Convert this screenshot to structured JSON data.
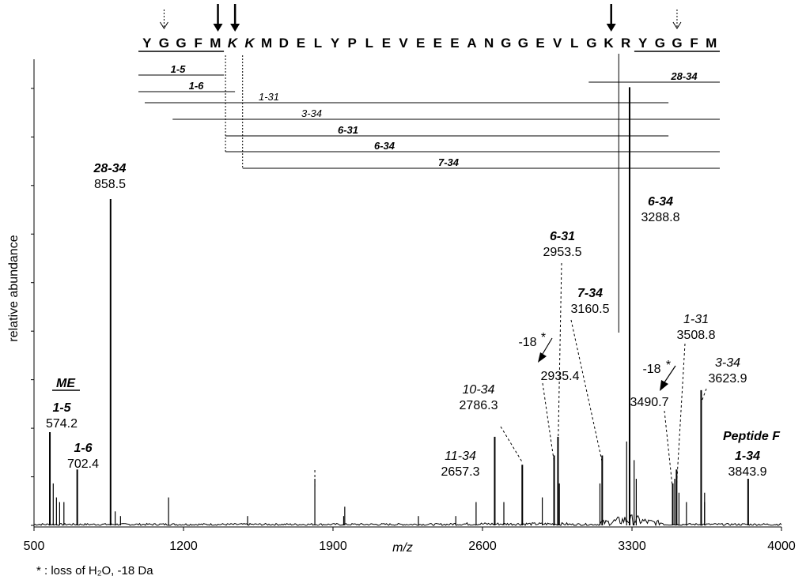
{
  "chart_data": {
    "type": "spectrum",
    "xlabel": "m/z",
    "ylabel": "relative abundance",
    "xlim": [
      500,
      4000
    ],
    "xticks": [
      "500",
      "1200",
      "1900",
      "2600",
      "3300",
      "4000"
    ],
    "sequence": [
      "Y",
      "G",
      "G",
      "F",
      "M",
      "K",
      "K",
      "M",
      "D",
      "E",
      "L",
      "Y",
      "P",
      "L",
      "E",
      "V",
      "E",
      "E",
      "E",
      "A",
      "N",
      "G",
      "G",
      "E",
      "V",
      "L",
      "G",
      "K",
      "R",
      "Y",
      "G",
      "G",
      "F",
      "M"
    ],
    "cleavage_arrows": [
      {
        "after": 5,
        "style": "bold"
      },
      {
        "after": 6,
        "style": "bold"
      },
      {
        "after": 28,
        "style": "bold"
      },
      {
        "after": 1,
        "style": "dotted"
      },
      {
        "after": 31,
        "style": "dotted"
      }
    ],
    "fragments": [
      {
        "label": "1-5",
        "start": 1,
        "end": 5,
        "style": "bold"
      },
      {
        "label": "1-6",
        "start": 1,
        "end": 6,
        "style": "bold"
      },
      {
        "label": "28-34",
        "start": 28,
        "end": 34,
        "style": "bold"
      },
      {
        "label": "1-31",
        "start": 1,
        "end": 31,
        "style": "italic"
      },
      {
        "label": "3-34",
        "start": 3,
        "end": 34,
        "style": "italic"
      },
      {
        "label": "6-31",
        "start": 6,
        "end": 31,
        "style": "bold"
      },
      {
        "label": "6-34",
        "start": 6,
        "end": 34,
        "style": "bold"
      },
      {
        "label": "7-34",
        "start": 7,
        "end": 34,
        "style": "bold"
      }
    ],
    "peaks": [
      {
        "mz": 574.2,
        "intensity": 0.2
      },
      {
        "mz": 702.4,
        "intensity": 0.12
      },
      {
        "mz": 858.5,
        "intensity": 0.7
      },
      {
        "mz": 2657.3,
        "intensity": 0.19
      },
      {
        "mz": 2786.3,
        "intensity": 0.13
      },
      {
        "mz": 2935.4,
        "intensity": 0.15
      },
      {
        "mz": 2953.5,
        "intensity": 0.19
      },
      {
        "mz": 3160.5,
        "intensity": 0.15
      },
      {
        "mz": 3288.8,
        "intensity": 0.94
      },
      {
        "mz": 3490.7,
        "intensity": 0.09
      },
      {
        "mz": 3508.8,
        "intensity": 0.12
      },
      {
        "mz": 3623.9,
        "intensity": 0.29
      },
      {
        "mz": 3843.9,
        "intensity": 0.1
      }
    ],
    "annotations": [
      {
        "mz": 574.2,
        "name": "1-5",
        "style": "bold",
        "extra": "ME"
      },
      {
        "mz": 702.4,
        "name": "1-6",
        "style": "bold"
      },
      {
        "mz": 858.5,
        "name": "28-34",
        "style": "bold"
      },
      {
        "mz": 2657.3,
        "name": "11-34",
        "style": "italic"
      },
      {
        "mz": 2786.3,
        "name": "10-34",
        "style": "italic"
      },
      {
        "mz": 2935.4,
        "name": "-18",
        "style": "plain"
      },
      {
        "mz": 2953.5,
        "name": "6-31",
        "style": "bold"
      },
      {
        "mz": 3160.5,
        "name": "7-34",
        "style": "bold"
      },
      {
        "mz": 3288.8,
        "name": "6-34",
        "style": "bold"
      },
      {
        "mz": 3490.7,
        "name": "-18",
        "style": "plain"
      },
      {
        "mz": 3508.8,
        "name": "1-31",
        "style": "italic"
      },
      {
        "mz": 3623.9,
        "name": "3-34",
        "style": "italic"
      },
      {
        "mz": 3843.9,
        "name": "1-34",
        "style": "bold",
        "extra": "Peptide F"
      }
    ],
    "footnote": "* : loss of H₂O, -18 Da",
    "grid": false
  }
}
